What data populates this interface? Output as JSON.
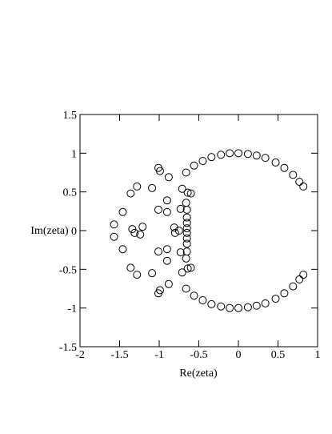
{
  "chart_data": {
    "type": "scatter",
    "x_label": "Re(zeta)",
    "y_label": "Im(zeta)",
    "xlim": [
      -2,
      1
    ],
    "ylim": [
      -1.5,
      1.5
    ],
    "xticks": [
      -2,
      -1.5,
      -1,
      -0.5,
      0,
      0.5,
      1
    ],
    "yticks": [
      -1.5,
      -1,
      -0.5,
      0,
      0.5,
      1,
      1.5
    ],
    "color": "#000000",
    "x": [
      -0.66,
      -0.56,
      -0.45,
      -0.34,
      -0.22,
      -0.11,
      0,
      0.12,
      0.23,
      0.34,
      0.47,
      0.58,
      0.69,
      0.77,
      0.82,
      -0.66,
      -0.56,
      -0.45,
      -0.34,
      -0.22,
      -0.11,
      0,
      0.12,
      0.23,
      0.34,
      0.47,
      0.58,
      0.69,
      0.77,
      0.82,
      -0.64,
      -0.6,
      -0.71,
      -0.66,
      -0.65,
      -0.65,
      -0.65,
      -0.65,
      -0.73,
      -0.9,
      -0.9,
      -0.88,
      -1.01,
      -0.99,
      -1.09,
      -1.01,
      -1.28,
      -1.36,
      -1.46,
      -1.57,
      -0.64,
      -0.6,
      -0.71,
      -0.66,
      -0.65,
      -0.65,
      -0.65,
      -0.65,
      -0.73,
      -0.9,
      -0.9,
      -0.88,
      -1.01,
      -0.99,
      -1.09,
      -1.01,
      -1.28,
      -1.36,
      -1.46,
      -1.57,
      -0.75,
      -0.81,
      -0.8,
      -1.34,
      -1.31,
      -1.21,
      -1.24
    ],
    "values": [
      0.75,
      0.84,
      0.9,
      0.95,
      0.98,
      1.0,
      1.0,
      0.99,
      0.97,
      0.94,
      0.88,
      0.81,
      0.72,
      0.63,
      0.57,
      -0.75,
      -0.84,
      -0.9,
      -0.95,
      -0.98,
      -1.0,
      -1.0,
      -0.99,
      -0.97,
      -0.94,
      -0.88,
      -0.81,
      -0.72,
      -0.63,
      -0.57,
      0.49,
      0.48,
      0.54,
      0.36,
      0.27,
      0.17,
      0.1,
      0.03,
      0.28,
      0.24,
      0.39,
      0.69,
      0.81,
      0.77,
      0.55,
      0.27,
      0.57,
      0.48,
      0.24,
      0.08,
      -0.49,
      -0.48,
      -0.54,
      -0.36,
      -0.27,
      -0.17,
      -0.1,
      -0.03,
      -0.28,
      -0.24,
      -0.39,
      -0.69,
      -0.81,
      -0.77,
      -0.55,
      -0.27,
      -0.57,
      -0.48,
      -0.24,
      -0.08,
      0,
      0.04,
      -0.03,
      0.02,
      -0.03,
      0.05,
      -0.05
    ]
  }
}
